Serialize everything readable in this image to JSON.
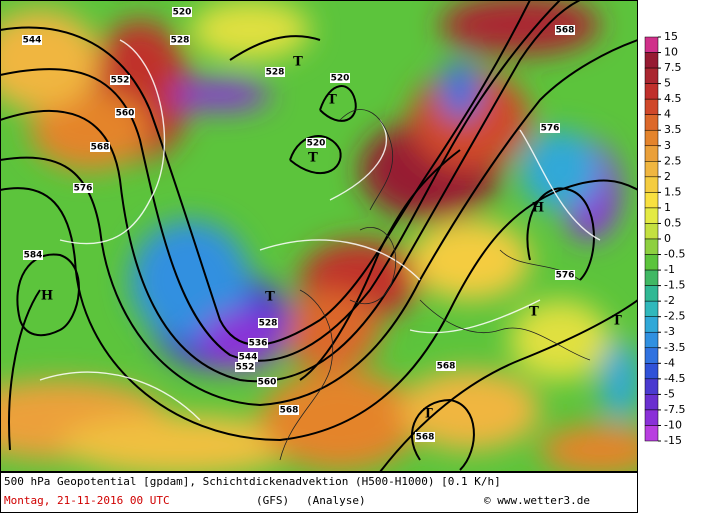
{
  "caption": {
    "line1": "500 hPa Geopotential [gpdam], Schichtdickenadvektion (H500-H1000) [0.1 K/h]",
    "date": "Montag, 21-11-2016  00 UTC",
    "model": "(GFS)",
    "run": "(Analyse)",
    "source": "© www.wetter3.de"
  },
  "colorbar": {
    "levels": [
      15,
      10,
      7.5,
      5,
      4.5,
      4,
      3.5,
      3,
      2.5,
      2,
      1.5,
      1,
      0.5,
      0,
      -0.5,
      -1,
      -1.5,
      -2,
      -2.5,
      -3,
      -3.5,
      -4,
      -4.5,
      -5,
      -7.5,
      -10,
      -15
    ],
    "colors": [
      "#d0308a",
      "#961a32",
      "#aa2630",
      "#c0302c",
      "#d0482a",
      "#dc682a",
      "#e4842c",
      "#eaa03a",
      "#f0b640",
      "#f4cc40",
      "#f8e040",
      "#e4ea44",
      "#c4e040",
      "#8ed040",
      "#5cc43c",
      "#40b864",
      "#30b894",
      "#30b8bc",
      "#30a8d8",
      "#3090e0",
      "#3072e0",
      "#3052d8",
      "#4a3ad0",
      "#6a30d0",
      "#8a30d8",
      "#b83ee0"
    ]
  },
  "contour_labels": [
    544,
    552,
    560,
    568,
    576,
    584,
    528,
    520,
    528,
    520,
    520,
    568,
    576,
    576,
    528,
    536,
    544,
    552,
    560,
    568,
    568,
    568
  ],
  "pressure_centers": [
    "H",
    "H",
    "T",
    "T",
    "T",
    "T",
    "T",
    "T",
    "T"
  ]
}
